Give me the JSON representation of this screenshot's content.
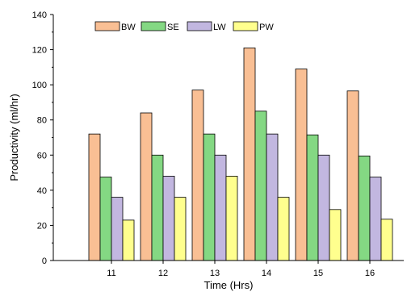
{
  "chart_data": {
    "type": "bar",
    "xlabel": "Time (Hrs)",
    "ylabel": "Productivity (ml/hr)",
    "ylim": [
      0,
      140
    ],
    "yticks": [
      0,
      20,
      40,
      60,
      80,
      100,
      120,
      140
    ],
    "categories": [
      "11",
      "12",
      "13",
      "14",
      "15",
      "16"
    ],
    "legend_position": "top-left",
    "grid": false,
    "series": [
      {
        "name": "BW",
        "color": "#f9bf94",
        "values": [
          72,
          84,
          97,
          121,
          109,
          96.5
        ]
      },
      {
        "name": "SE",
        "color": "#84d883",
        "values": [
          47.5,
          60,
          72,
          85,
          71.5,
          59.5
        ]
      },
      {
        "name": "LW",
        "color": "#c2b7e0",
        "values": [
          36,
          48,
          60,
          72,
          60,
          47.5
        ]
      },
      {
        "name": "PW",
        "color": "#ffff8e",
        "values": [
          23,
          36,
          48,
          36,
          29,
          23.5
        ]
      }
    ]
  }
}
